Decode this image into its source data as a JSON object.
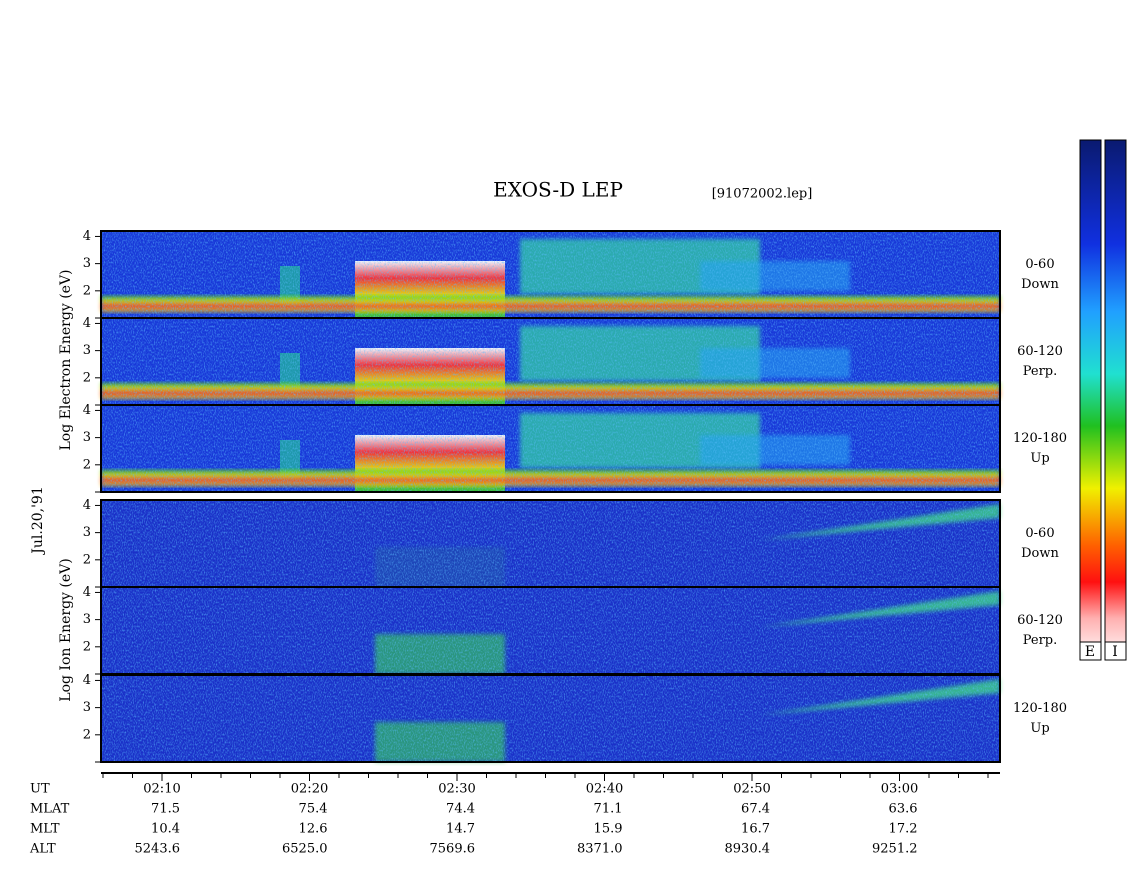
{
  "title": "EXOS-D LEP",
  "file": "[91072002.lep]",
  "date": "Jul.20,'91",
  "electron_axis_label": "Log  Electron  Energy (eV)",
  "ion_axis_label": "Log    Ion    Energy (eV)",
  "ylim": [
    1,
    4.2
  ],
  "yticks": [
    2,
    3,
    4
  ],
  "panels": [
    {
      "species": "electron",
      "pitch": "0-60",
      "direction": "Down"
    },
    {
      "species": "electron",
      "pitch": "60-120",
      "direction": "Perp."
    },
    {
      "species": "electron",
      "pitch": "120-180",
      "direction": "Up"
    },
    {
      "species": "ion",
      "pitch": "0-60",
      "direction": "Down"
    },
    {
      "species": "ion",
      "pitch": "60-120",
      "direction": "Perp."
    },
    {
      "species": "ion",
      "pitch": "120-180",
      "direction": "Up"
    }
  ],
  "colorbar_labels": [
    "E",
    "I"
  ],
  "orbit_table": {
    "rows": [
      {
        "label": "UT",
        "values": [
          "02:10",
          "02:20",
          "02:30",
          "02:40",
          "02:50",
          "03:00"
        ]
      },
      {
        "label": "MLAT",
        "values": [
          "71.5",
          "75.4",
          "74.4",
          "71.1",
          "67.4",
          "63.6"
        ]
      },
      {
        "label": "MLT",
        "values": [
          "10.4",
          "12.6",
          "14.7",
          "15.9",
          "16.7",
          "17.2"
        ]
      },
      {
        "label": "ALT",
        "values": [
          "5243.6",
          "6525.0",
          "7569.6",
          "8371.0",
          "8930.4",
          "9251.2"
        ]
      }
    ]
  }
}
